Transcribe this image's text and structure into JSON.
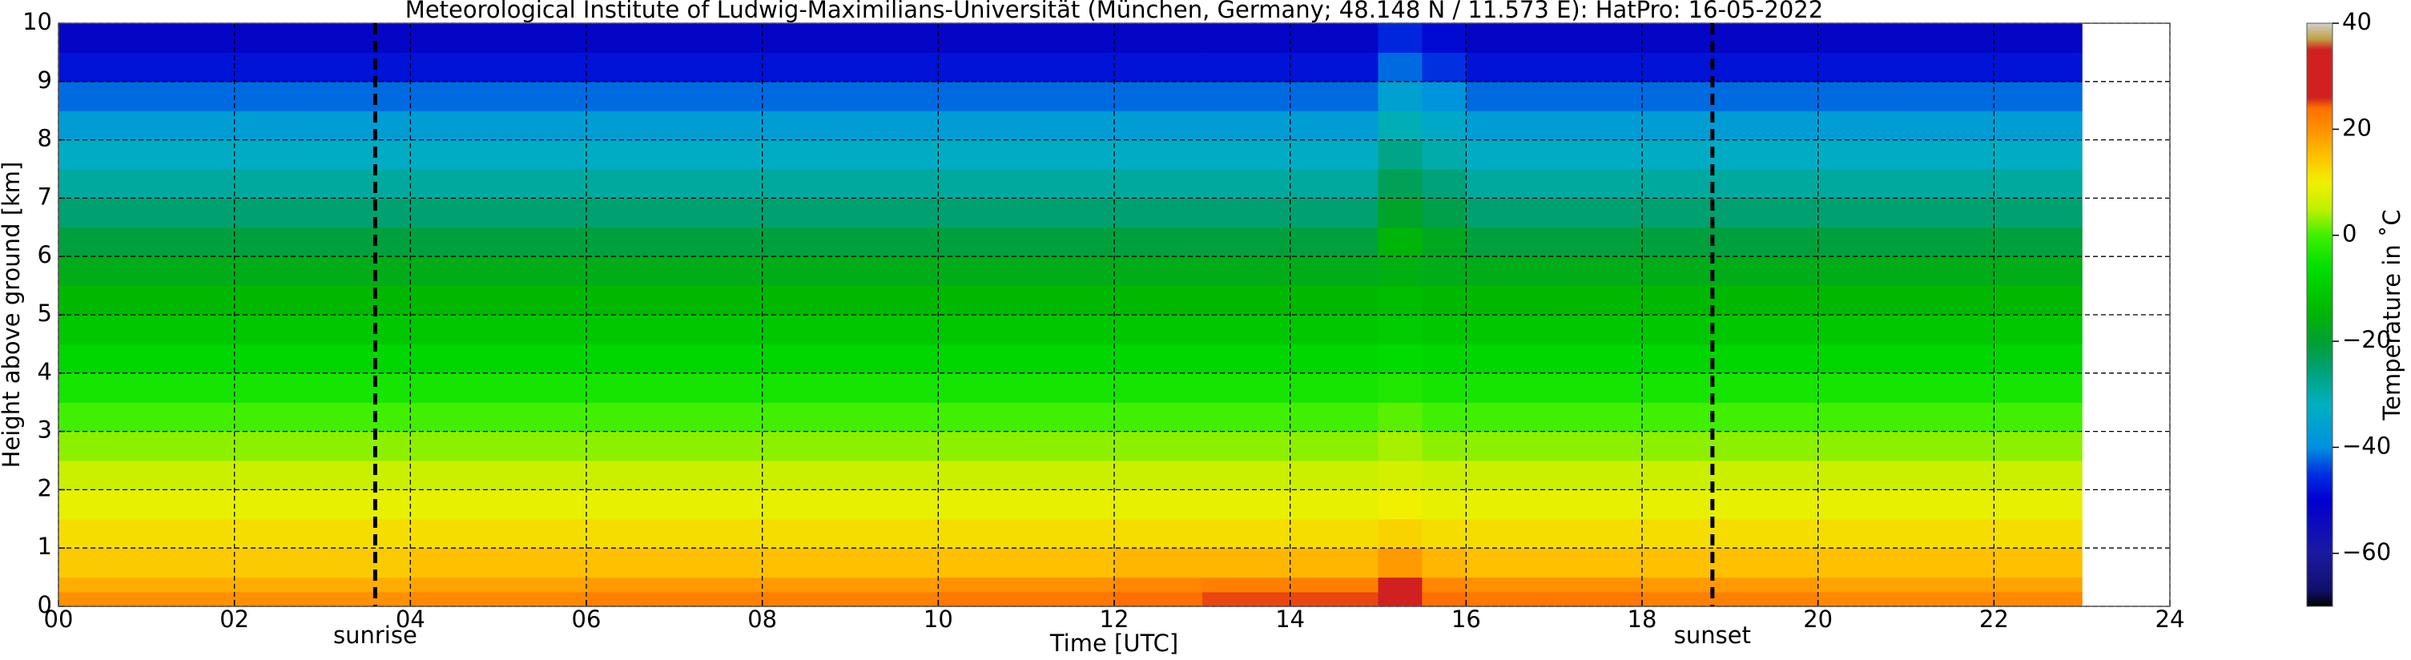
{
  "chart_data": {
    "type": "heatmap",
    "title": "Meteorological Institute of Ludwig-Maximilians-Universität (München, Germany; 48.148 N / 11.573 E):    HatPro: 16-05-2022",
    "x_label": "Time [UTC]",
    "y_label": "Height above ground [km]",
    "colorbar_label": "Temperature in ˚C",
    "x_edges": [
      0,
      2,
      4,
      6,
      8,
      10,
      12,
      13,
      14,
      15,
      15.5,
      16,
      18,
      20,
      22,
      23
    ],
    "y_edges": [
      0,
      0.25,
      0.5,
      1,
      1.5,
      2,
      2.5,
      3,
      3.5,
      4,
      4.5,
      5,
      5.5,
      6,
      6.5,
      7,
      7.5,
      8,
      8.5,
      9,
      9.5,
      10
    ],
    "values": [
      [
        20,
        20,
        21,
        22,
        22,
        23,
        24,
        25,
        25,
        30,
        24,
        23,
        22,
        21,
        21
      ],
      [
        17,
        17,
        18,
        19,
        19,
        20,
        21,
        22,
        22,
        27,
        21,
        20,
        19,
        18,
        18
      ],
      [
        14,
        14,
        15,
        15,
        15,
        15,
        16,
        16,
        16,
        19,
        16,
        15,
        15,
        15,
        15
      ],
      [
        12,
        12,
        12,
        12,
        12,
        12,
        12,
        12,
        12,
        13,
        12,
        12,
        12,
        12,
        12
      ],
      [
        9,
        9,
        9,
        9,
        9,
        9,
        9,
        9,
        9,
        10,
        9,
        9,
        9,
        9,
        9
      ],
      [
        6,
        6,
        6,
        6,
        6,
        6,
        6,
        6,
        6,
        7,
        6,
        6,
        6,
        6,
        6
      ],
      [
        3,
        3,
        3,
        3,
        3,
        3,
        3,
        3,
        3,
        4,
        3,
        3,
        3,
        3,
        3
      ],
      [
        0,
        0,
        0,
        0,
        0,
        0,
        0,
        0,
        0,
        1,
        0,
        0,
        0,
        0,
        0
      ],
      [
        -4,
        -4,
        -4,
        -4,
        -4,
        -4,
        -4,
        -4,
        -4,
        -3,
        -4,
        -4,
        -4,
        -4,
        -4
      ],
      [
        -8,
        -8,
        -8,
        -8,
        -8,
        -8,
        -8,
        -8,
        -8,
        -7,
        -8,
        -8,
        -8,
        -8,
        -8
      ],
      [
        -11,
        -11,
        -11,
        -11,
        -11,
        -11,
        -11,
        -11,
        -11,
        -10,
        -11,
        -11,
        -11,
        -11,
        -11
      ],
      [
        -14,
        -14,
        -14,
        -14,
        -14,
        -14,
        -14,
        -14,
        -14,
        -13,
        -14,
        -14,
        -14,
        -14,
        -14
      ],
      [
        -17,
        -17,
        -17,
        -17,
        -17,
        -17,
        -17,
        -17,
        -17,
        -16,
        -17,
        -17,
        -17,
        -17,
        -17
      ],
      [
        -21,
        -21,
        -21,
        -21,
        -21,
        -21,
        -21,
        -21,
        -21,
        -15,
        -18,
        -21,
        -21,
        -21,
        -21
      ],
      [
        -25,
        -25,
        -25,
        -25,
        -25,
        -25,
        -25,
        -25,
        -25,
        -19,
        -22,
        -25,
        -25,
        -25,
        -25
      ],
      [
        -29,
        -29,
        -29,
        -29,
        -29,
        -29,
        -29,
        -29,
        -29,
        -23,
        -26,
        -29,
        -29,
        -29,
        -29
      ],
      [
        -33,
        -33,
        -33,
        -33,
        -33,
        -33,
        -33,
        -33,
        -33,
        -27,
        -30,
        -33,
        -33,
        -33,
        -33
      ],
      [
        -37,
        -37,
        -37,
        -37,
        -37,
        -37,
        -37,
        -37,
        -37,
        -31,
        -34,
        -37,
        -37,
        -37,
        -37
      ],
      [
        -42,
        -42,
        -42,
        -42,
        -42,
        -42,
        -42,
        -42,
        -42,
        -36,
        -39,
        -42,
        -42,
        -42,
        -42
      ],
      [
        -48,
        -48,
        -48,
        -48,
        -48,
        -48,
        -48,
        -48,
        -48,
        -42,
        -45,
        -48,
        -48,
        -48,
        -48
      ],
      [
        -52,
        -52,
        -52,
        -52,
        -52,
        -52,
        -52,
        -52,
        -52,
        -46,
        -49,
        -52,
        -52,
        -52,
        -52
      ]
    ],
    "xlim": [
      0,
      24
    ],
    "ylim": [
      0,
      10
    ],
    "xticks": [
      {
        "value": 0,
        "label": "00"
      },
      {
        "value": 2,
        "label": "02"
      },
      {
        "value": 4,
        "label": "04"
      },
      {
        "value": 6,
        "label": "06"
      },
      {
        "value": 8,
        "label": "08"
      },
      10,
      12,
      14,
      16,
      18,
      20,
      22,
      24
    ],
    "yticks": [
      0,
      1,
      2,
      3,
      4,
      5,
      6,
      7,
      8,
      9,
      10
    ],
    "grid": true,
    "clim": [
      -70,
      40
    ],
    "cticks": [
      {
        "value": -60,
        "label": "−60"
      },
      {
        "value": -40,
        "label": "−40"
      },
      {
        "value": -20,
        "label": "−20"
      },
      0,
      20,
      40
    ],
    "colormap": [
      {
        "value": -70,
        "color": "#000000"
      },
      {
        "value": -67,
        "color": "#10106a"
      },
      {
        "value": -60,
        "color": "#1a1aa0"
      },
      {
        "value": -50,
        "color": "#0000d0"
      },
      {
        "value": -45,
        "color": "#0030e0"
      },
      {
        "value": -40,
        "color": "#0090e0"
      },
      {
        "value": -32,
        "color": "#00b0c0"
      },
      {
        "value": -25,
        "color": "#00a070"
      },
      {
        "value": -20,
        "color": "#00a030"
      },
      {
        "value": -14,
        "color": "#00b800"
      },
      {
        "value": -6,
        "color": "#00e000"
      },
      {
        "value": 0,
        "color": "#40f000"
      },
      {
        "value": 5,
        "color": "#c0f000"
      },
      {
        "value": 10,
        "color": "#f0f000"
      },
      {
        "value": 15,
        "color": "#ffc000"
      },
      {
        "value": 20,
        "color": "#ff9000"
      },
      {
        "value": 24,
        "color": "#ff7000"
      },
      {
        "value": 26,
        "color": "#d02020"
      },
      {
        "value": 35,
        "color": "#d02020"
      },
      {
        "value": 37,
        "color": "#c0a040"
      },
      {
        "value": 40,
        "color": "#d0d0d0"
      }
    ],
    "annotations": [
      {
        "text": "sunrise",
        "x": 3.6
      },
      {
        "text": "sunset",
        "x": 18.8
      }
    ]
  }
}
